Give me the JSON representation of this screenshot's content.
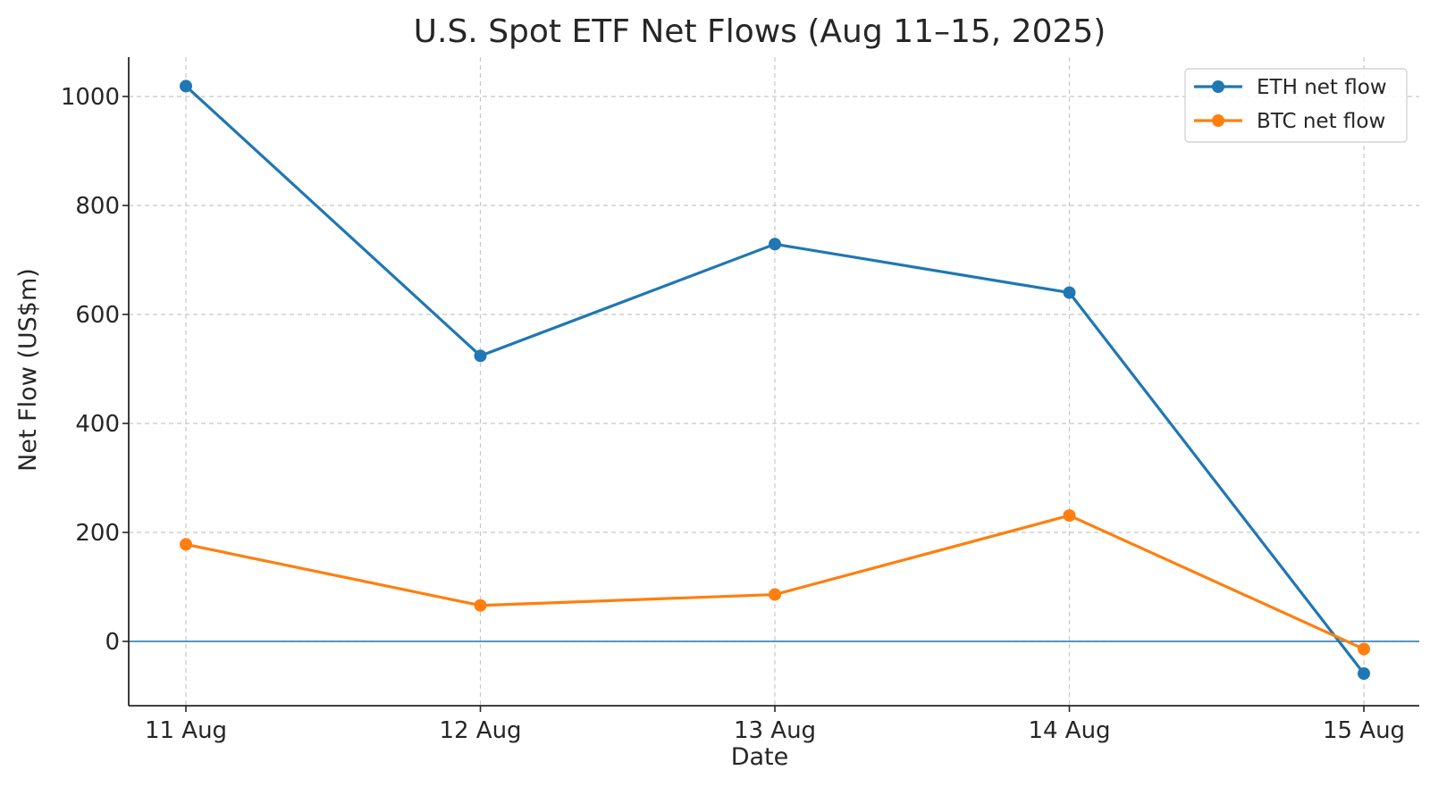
{
  "chart_data": {
    "type": "line",
    "title": "U.S. Spot ETF Net Flows (Aug 11–15, 2025)",
    "xlabel": "Date",
    "ylabel": "Net Flow (US$m)",
    "categories": [
      "11 Aug",
      "12 Aug",
      "13 Aug",
      "14 Aug",
      "15 Aug"
    ],
    "ylim": [
      -110,
      1075
    ],
    "yticks": [
      0,
      200,
      400,
      600,
      800,
      1000
    ],
    "grid": true,
    "zero_line": true,
    "legend_position": "top-right",
    "series": [
      {
        "name": "ETH net flow",
        "color": "#1f77b4",
        "values": [
          1019,
          524,
          729,
          640,
          -59
        ]
      },
      {
        "name": "BTC net flow",
        "color": "#ff7f0e",
        "values": [
          178,
          66,
          86,
          231,
          -14
        ]
      }
    ]
  }
}
